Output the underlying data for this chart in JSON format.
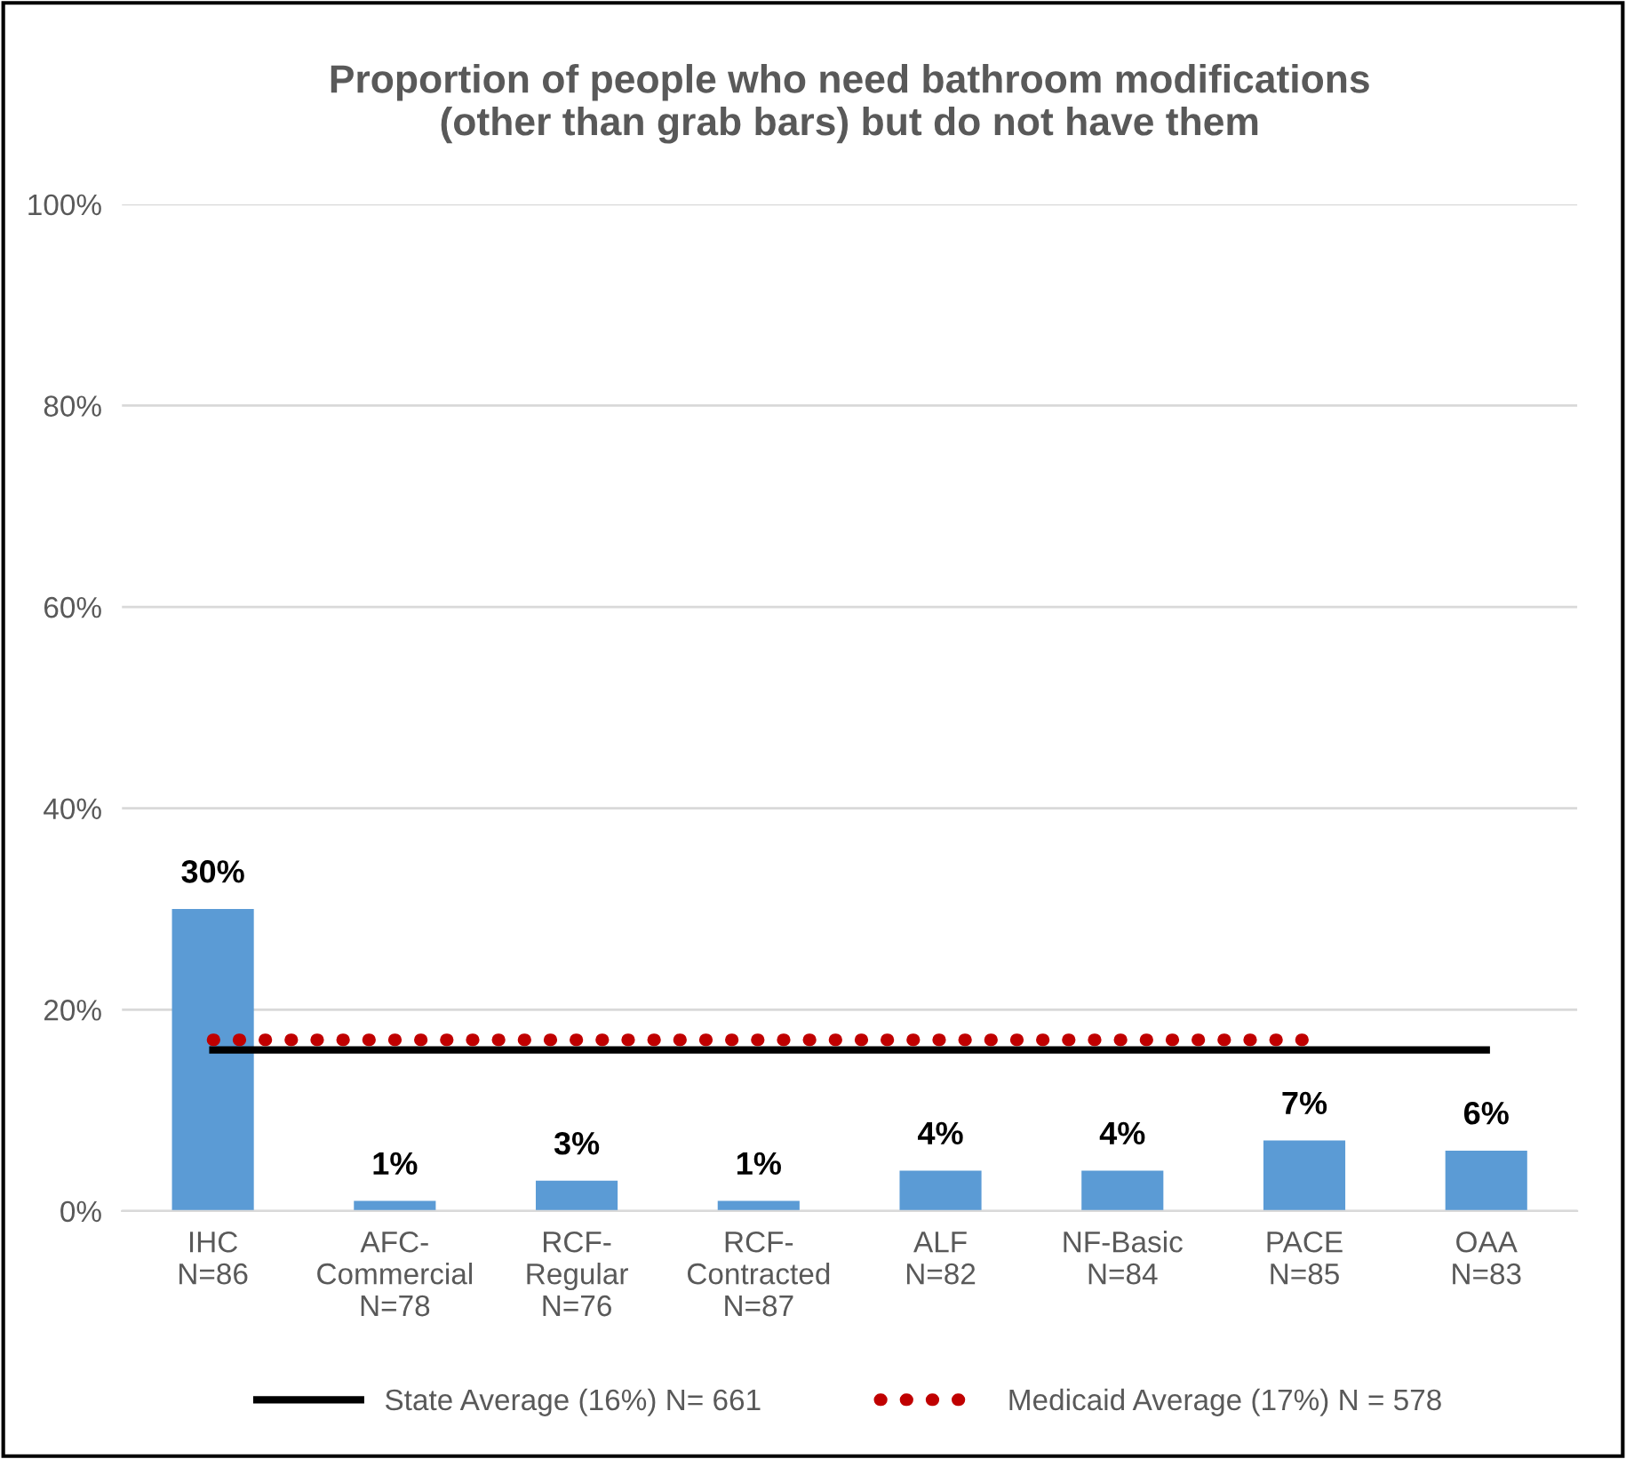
{
  "chart_data": {
    "type": "bar",
    "title": "Proportion of people who need bathroom modifications\n(other than grab bars) but do not have them",
    "categories": [
      "IHC\nN=86",
      "AFC-\nCommercial\nN=78",
      "RCF-\nRegular\nN=76",
      "RCF-\nContracted\nN=87",
      "ALF\nN=82",
      "NF-Basic\nN=84",
      "PACE\nN=85",
      "OAA\nN=83"
    ],
    "series": [
      {
        "color": "#5b9bd5",
        "values": [
          30,
          1,
          3,
          1,
          4,
          4,
          7,
          6
        ],
        "value_labels": [
          "30%",
          "1%",
          "3%",
          "1%",
          "4%",
          "4%",
          "7%",
          "6%"
        ]
      },
      {
        "type": "line",
        "name": "State Average (16%) N= 661",
        "color": "#000000",
        "line_style": "solid",
        "values": [
          16,
          16,
          16,
          16,
          16,
          16,
          16,
          16
        ]
      },
      {
        "type": "line",
        "name": "Medicaid Average (17%) N = 578",
        "color": "#c00000",
        "line_style": "dotted",
        "values": [
          17,
          17,
          17,
          17,
          17,
          17,
          17,
          null
        ]
      }
    ],
    "ylim": [
      0,
      100
    ],
    "yticks": [
      {
        "value": 0,
        "label": "0%"
      },
      {
        "value": 20,
        "label": "20%"
      },
      {
        "value": 40,
        "label": "40%"
      },
      {
        "value": 60,
        "label": "60%"
      },
      {
        "value": 80,
        "label": "80%"
      },
      {
        "value": 100,
        "label": "100%"
      }
    ],
    "grid": "y",
    "legend": "bottom"
  }
}
